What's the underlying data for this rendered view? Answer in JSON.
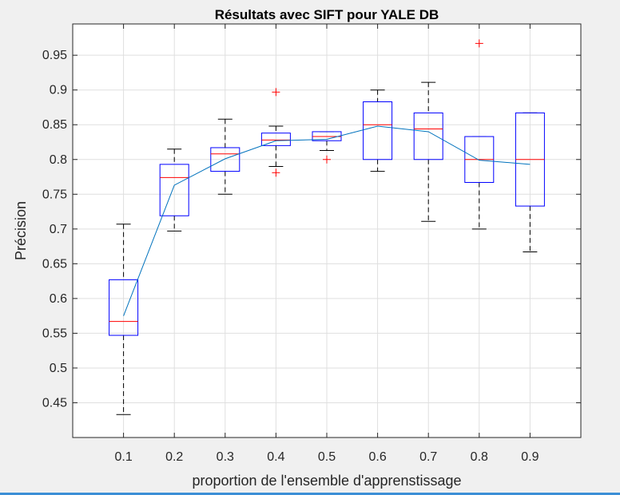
{
  "chart_data": {
    "type": "box",
    "title": "Résultats avec SIFT pour YALE DB",
    "xlabel": "proportion de l'ensemble d'apprenstissage",
    "ylabel": "Précision",
    "categories": [
      "0.1",
      "0.2",
      "0.3",
      "0.4",
      "0.5",
      "0.6",
      "0.7",
      "0.8",
      "0.9"
    ],
    "ylim": [
      0.4,
      0.995
    ],
    "yticks": [
      0.45,
      0.5,
      0.55,
      0.6,
      0.65,
      0.7,
      0.75,
      0.8,
      0.85,
      0.9,
      0.95
    ],
    "ytick_labels": [
      "0.45",
      "0.5",
      "0.55",
      "0.6",
      "0.65",
      "0.7",
      "0.75",
      "0.8",
      "0.85",
      "0.9",
      "0.95"
    ],
    "grid": true,
    "boxes": [
      {
        "category": "0.1",
        "whisker_low": 0.433,
        "q1": 0.547,
        "median": 0.567,
        "q3": 0.627,
        "whisker_high": 0.707,
        "outliers": []
      },
      {
        "category": "0.2",
        "whisker_low": 0.697,
        "q1": 0.719,
        "median": 0.774,
        "q3": 0.793,
        "whisker_high": 0.815,
        "outliers": []
      },
      {
        "category": "0.3",
        "whisker_low": 0.75,
        "q1": 0.783,
        "median": 0.808,
        "q3": 0.817,
        "whisker_high": 0.858,
        "outliers": []
      },
      {
        "category": "0.4",
        "whisker_low": 0.79,
        "q1": 0.82,
        "median": 0.828,
        "q3": 0.838,
        "whisker_high": 0.848,
        "outliers": [
          0.897,
          0.781
        ]
      },
      {
        "category": "0.5",
        "whisker_low": 0.813,
        "q1": 0.827,
        "median": 0.833,
        "q3": 0.84,
        "whisker_high": 0.84,
        "outliers": [
          0.8
        ]
      },
      {
        "category": "0.6",
        "whisker_low": 0.783,
        "q1": 0.8,
        "median": 0.85,
        "q3": 0.883,
        "whisker_high": 0.9,
        "outliers": []
      },
      {
        "category": "0.7",
        "whisker_low": 0.711,
        "q1": 0.8,
        "median": 0.844,
        "q3": 0.867,
        "whisker_high": 0.911,
        "outliers": []
      },
      {
        "category": "0.8",
        "whisker_low": 0.7,
        "q1": 0.767,
        "median": 0.8,
        "q3": 0.833,
        "whisker_high": 0.833,
        "outliers": [
          0.967
        ]
      },
      {
        "category": "0.9",
        "whisker_low": 0.667,
        "q1": 0.733,
        "median": 0.8,
        "q3": 0.867,
        "whisker_high": 0.867,
        "outliers": []
      }
    ],
    "mean_line": {
      "values": [
        0.575,
        0.763,
        0.801,
        0.827,
        0.829,
        0.848,
        0.84,
        0.799,
        0.793
      ]
    },
    "colors": {
      "box": "#0000ff",
      "median": "#ff0000",
      "whisker": "#000000",
      "outlier": "#ff0000",
      "mean_line": "#0072bd",
      "grid": "#dfdfdf",
      "axes_bg": "#ffffff",
      "figure_bg": "#f0f0f0"
    }
  }
}
